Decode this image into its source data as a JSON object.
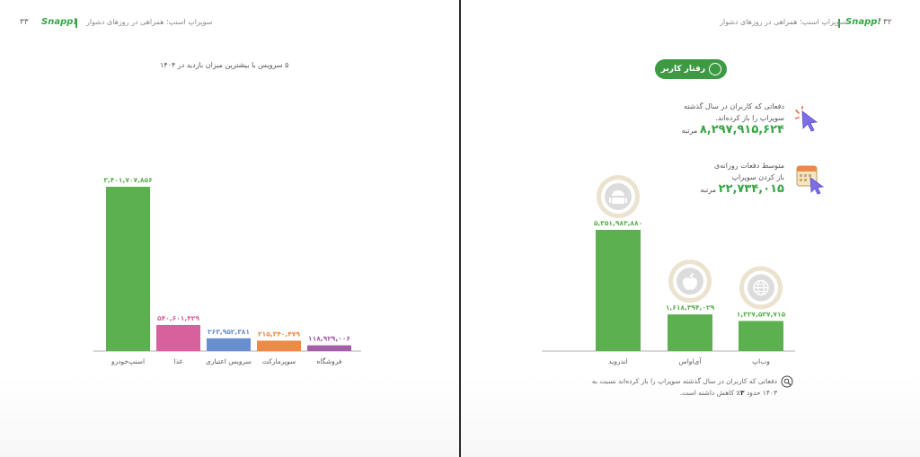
{
  "left_page": {
    "page_number": "۳۳",
    "brand": "Snapp!",
    "header_title": "سوپراپ اسنپ؛ همراهی در روزهای دشوار"
  },
  "right_page": {
    "page_number": "۳۲",
    "brand": "Snapp!",
    "header_title": "سوپراپ اسنپ؛ همراهی در روزهای دشوار",
    "pill_label": "رفتار کاربر",
    "stat1": {
      "label_line1": "دفعاتی که کاربران در سال گذشته",
      "label_line2": "سوپراپ را باز کرده‌اند.",
      "value": "۸,۲۹۷,۹۱۵,۶۲۴",
      "unit": "مرتبه"
    },
    "stat2": {
      "label_line1": "متوسط دفعات روزانه‌ی",
      "label_line2": "باز کردن سوپراپ",
      "value": "۲۲,۷۳۴,۰۱۵",
      "unit": "مرتبه"
    },
    "note": {
      "text1": "دفعاتی که کاربران در سال گذشته سوپراپ را باز کرده‌اند نسبت به",
      "text2_pre": "۱۴۰۳ حدود",
      "text2_bold": "۳٪",
      "text2_post": "کاهش داشته است."
    }
  },
  "colors": {
    "green": "#5cb04f",
    "pink": "#d8609c",
    "blue": "#6a8fcf",
    "orange": "#ec8a48",
    "purple": "#a45fa8",
    "brand_green": "#35a744"
  },
  "icons": {
    "android": "android-icon",
    "apple": "apple-icon",
    "web": "globe-icon",
    "cursor": "cursor-click-icon",
    "calendar": "calendar-icon",
    "note": "search-note-icon"
  },
  "chart_data": [
    {
      "type": "bar",
      "title": "۵ سرویس با بیشترین میزان بازدید در ۱۴۰۴",
      "categories": [
        "اسنپ‌خودرو",
        "غذا",
        "سرویس اعتباری",
        "سوپرمارکت",
        "فروشگاه"
      ],
      "values": [
        3401707856,
        540601429,
        263952381,
        215340479,
        118929006
      ],
      "value_labels": [
        "۳,۴۰۱,۷۰۷,۸۵۶",
        "۵۴۰,۶۰۱,۴۲۹",
        "۲۶۳,۹۵۲,۳۸۱",
        "۲۱۵,۳۴۰,۴۷۹",
        "۱۱۸,۹۲۹,۰۰۶"
      ],
      "colors": [
        "#5cb04f",
        "#d8609c",
        "#6a8fcf",
        "#ec8a48",
        "#a45fa8"
      ],
      "ylim": [
        0,
        3401707856
      ],
      "grid": false
    },
    {
      "type": "bar",
      "title": "",
      "categories": [
        "اندروید",
        "آی‌اواس",
        "وب‌اپ"
      ],
      "values": [
        5351983880,
        1618394029,
        1327537715
      ],
      "value_labels": [
        "۵,۳۵۱,۹۸۳,۸۸۰",
        "۱,۶۱۸,۳۹۴,۰۲۹",
        "۱,۳۲۷,۵۳۷,۷۱۵"
      ],
      "colors": [
        "#5cb04f",
        "#5cb04f",
        "#5cb04f"
      ],
      "ylim": [
        0,
        5351983880
      ],
      "grid": false
    }
  ]
}
